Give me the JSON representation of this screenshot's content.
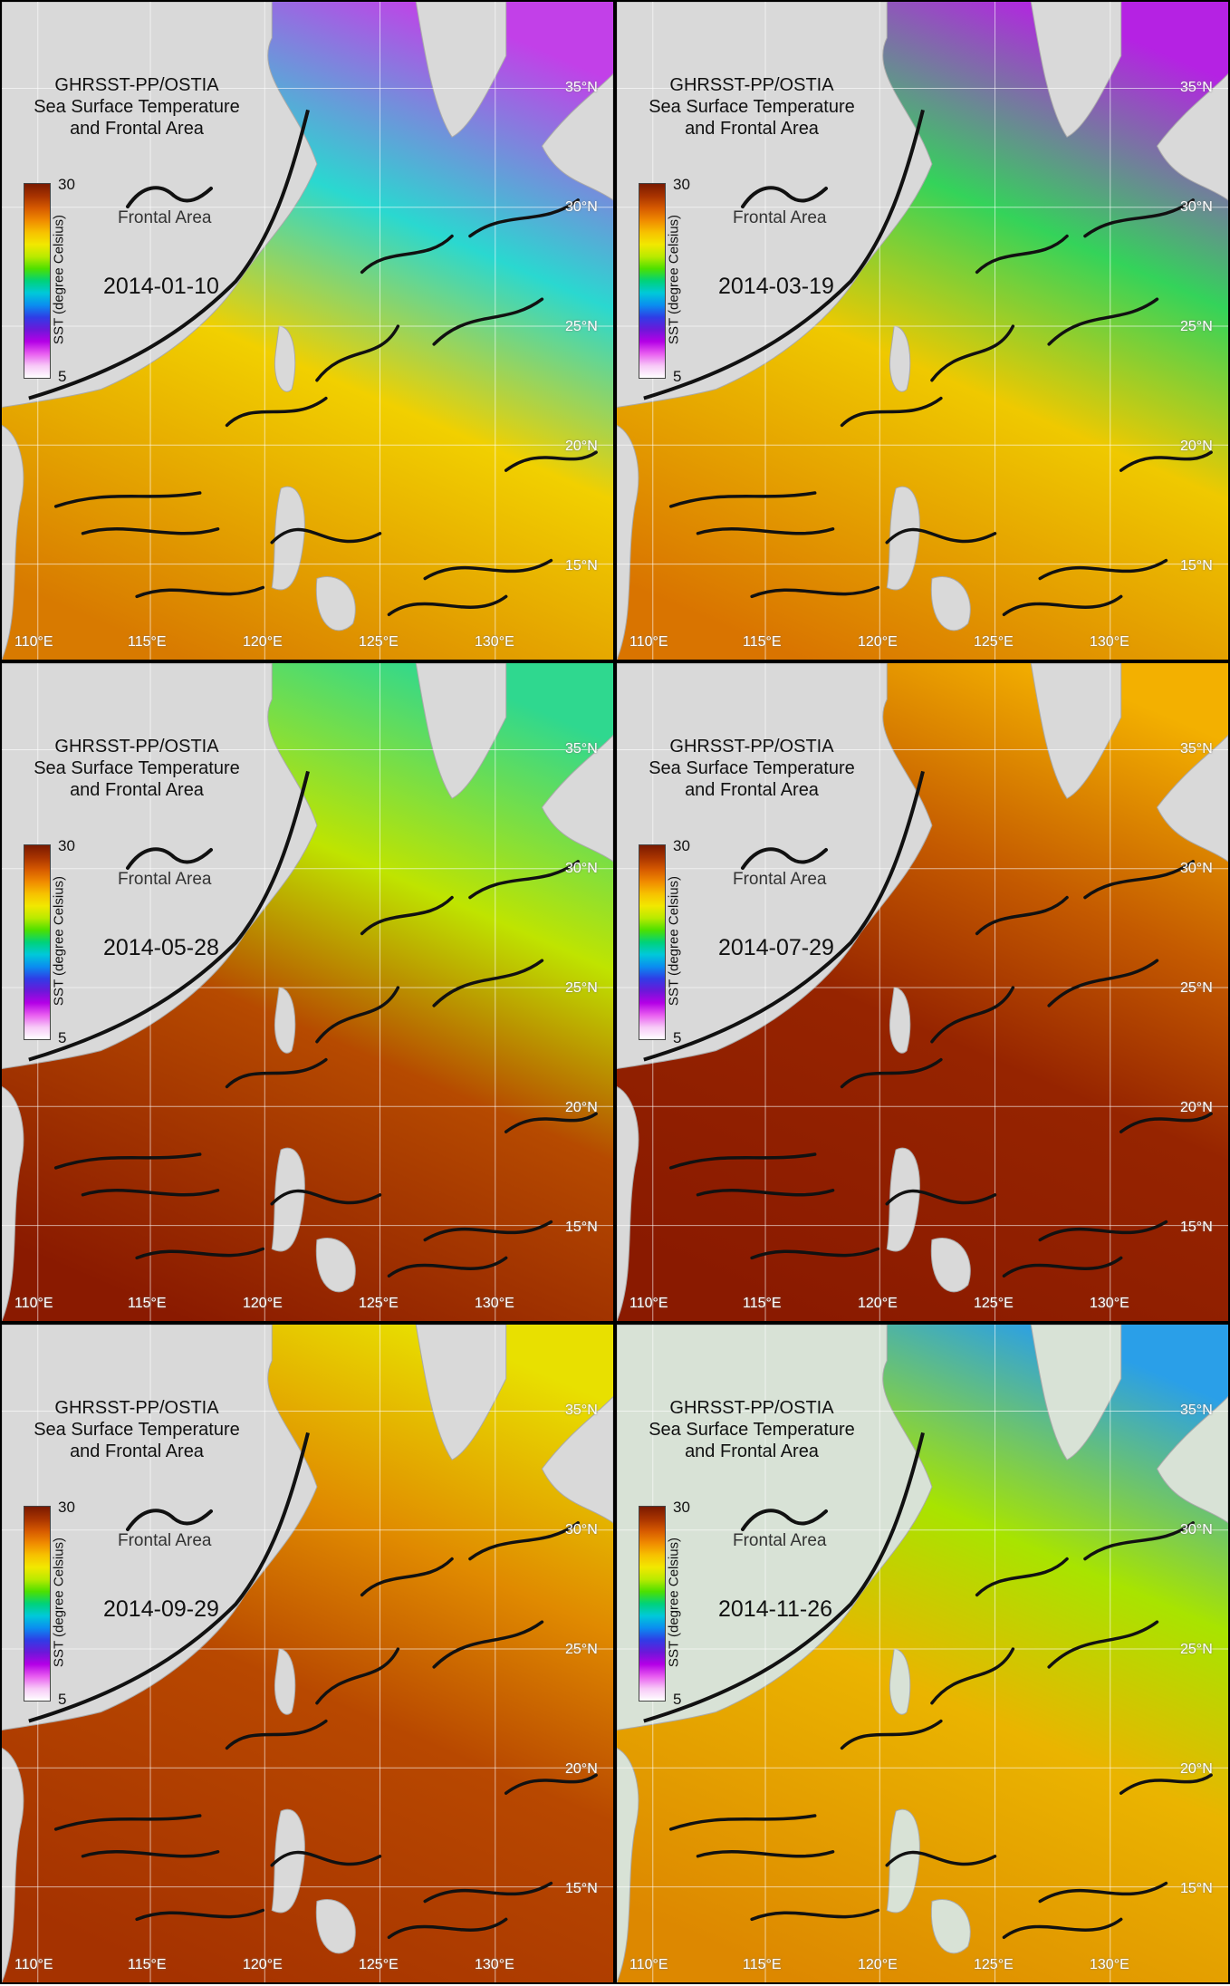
{
  "map": {
    "title_lines": [
      "GHRSST-PP/OSTIA",
      "Sea Surface Temperature",
      "and Frontal Area"
    ],
    "colorbar": {
      "label": "SST (degree Celsius)",
      "max": "30",
      "min": "5",
      "colors": [
        "#7a1a00",
        "#a83300",
        "#d65a00",
        "#f08a00",
        "#f7c100",
        "#f2e800",
        "#b9ea00",
        "#4de000",
        "#00d27a",
        "#00c9d9",
        "#0a8ef0",
        "#2f3de6",
        "#6b18d9",
        "#b400e6",
        "#e85cf0",
        "#f7c8f7",
        "#ffffff"
      ]
    },
    "legend_label": "Frontal Area",
    "lat_labels": [
      "35°N",
      "30°N",
      "25°N",
      "20°N",
      "15°N"
    ],
    "lon_labels": [
      "110°E",
      "115°E",
      "120°E",
      "125°E",
      "130°E"
    ],
    "panels": [
      {
        "date": "2014-01-10",
        "north": "#c240e8",
        "mid": "#2ad8d0",
        "south_mid": "#f1d000",
        "south": "#d87a00",
        "land": "#d9d9d9"
      },
      {
        "date": "2014-03-19",
        "north": "#b522e3",
        "mid": "#34d35a",
        "south_mid": "#efc900",
        "south": "#d97400",
        "land": "#d9d9d9"
      },
      {
        "date": "2014-05-28",
        "north": "#2fd88f",
        "mid": "#bfe400",
        "south_mid": "#b64a00",
        "south": "#8a1a00",
        "land": "#d9d9d9"
      },
      {
        "date": "2014-07-29",
        "north": "#f3b000",
        "mid": "#c45a00",
        "south_mid": "#962400",
        "south": "#8a1a00",
        "land": "#d9d9d9"
      },
      {
        "date": "2014-09-29",
        "north": "#e8e000",
        "mid": "#e08a00",
        "south_mid": "#b84800",
        "south": "#a53200",
        "land": "#d9d9d9"
      },
      {
        "date": "2014-11-26",
        "north": "#2a9fe8",
        "mid": "#a8e400",
        "south_mid": "#eab400",
        "south": "#dd8800",
        "land": "#d8e2d6"
      }
    ]
  }
}
